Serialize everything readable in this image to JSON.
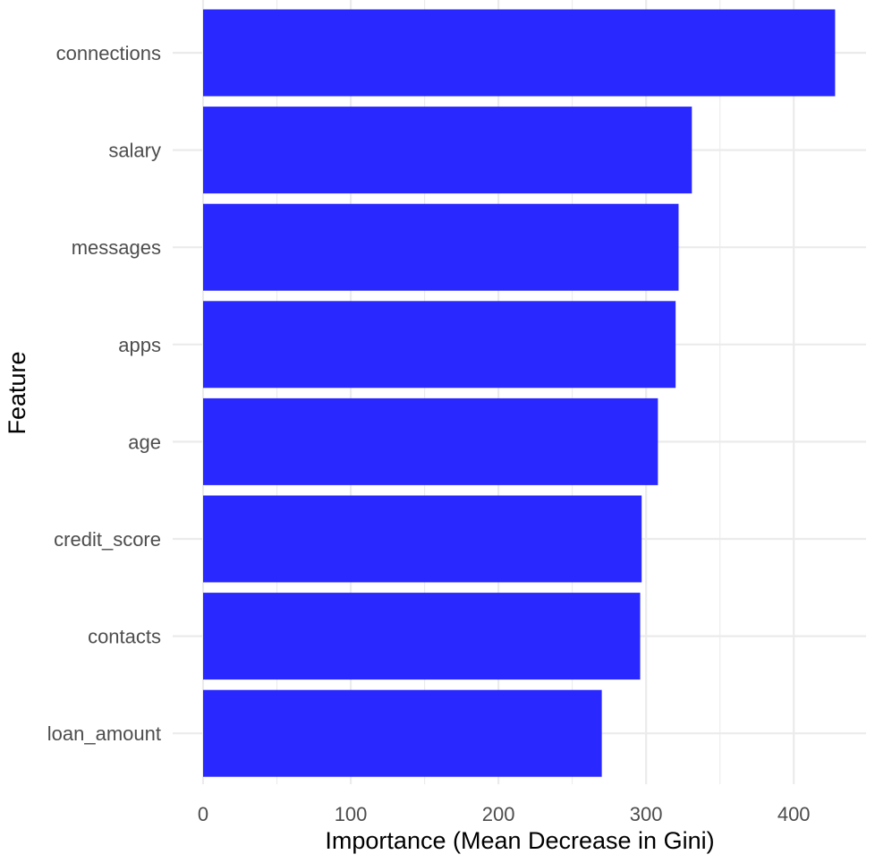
{
  "chart_data": {
    "type": "bar",
    "orientation": "horizontal",
    "categories": [
      "connections",
      "salary",
      "messages",
      "apps",
      "age",
      "credit_score",
      "contacts",
      "loan_amount"
    ],
    "values": [
      428,
      331,
      322,
      320,
      308,
      297,
      296,
      270
    ],
    "xlabel": "Importance (Mean Decrease in Gini)",
    "ylabel": "Feature",
    "xlim": [
      0,
      450
    ],
    "x_ticks": [
      0,
      100,
      200,
      300,
      400
    ],
    "x_tick_labels": [
      "0",
      "100",
      "200",
      "300",
      "400"
    ],
    "grid": true,
    "legend": "none",
    "bar_color": "#2828ff",
    "grid_color": "#ebebeb"
  }
}
